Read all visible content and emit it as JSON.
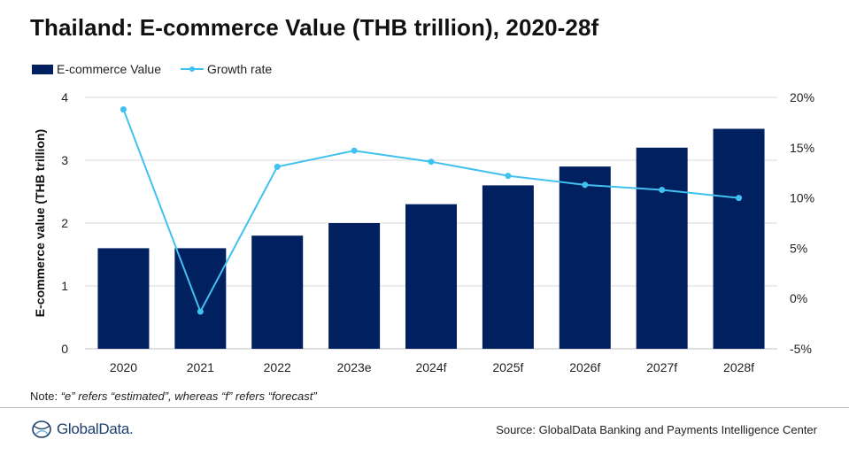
{
  "title": "Thailand: E-commerce Value (THB trillion), 2020-28f",
  "legend": {
    "bar_label": "E-commerce Value",
    "line_label": "Growth rate"
  },
  "note": {
    "prefix": "Note: ",
    "text": "“e” refers “estimated”, whereas “f” refers “forecast”"
  },
  "footer": {
    "logo_text": "GlobalData.",
    "source": "Source: GlobalData Banking and Payments Intelligence Center"
  },
  "colors": {
    "bar": "#002060",
    "line": "#41c1f0",
    "grid": "#d9d9d9"
  },
  "chart_data": {
    "type": "bar",
    "categories": [
      "2020",
      "2021",
      "2022",
      "2023e",
      "2024f",
      "2025f",
      "2026f",
      "2027f",
      "2028f"
    ],
    "series": [
      {
        "name": "E-commerce Value",
        "type": "bar",
        "axis": "left",
        "values": [
          1.6,
          1.6,
          1.8,
          2.0,
          2.3,
          2.6,
          2.9,
          3.2,
          3.5
        ]
      },
      {
        "name": "Growth rate",
        "type": "line",
        "axis": "right",
        "values": [
          18.8,
          -1.3,
          13.1,
          14.7,
          13.6,
          12.2,
          11.3,
          10.8,
          10.0
        ]
      }
    ],
    "ylabel": "E-commerce value (THB trillion)",
    "ylim": [
      0,
      4
    ],
    "yticks": [
      "0",
      "1",
      "2",
      "3",
      "4"
    ],
    "y2lim": [
      -5,
      20
    ],
    "y2ticks": [
      "-5%",
      "0%",
      "5%",
      "10%",
      "15%",
      "20%"
    ],
    "grid": true,
    "legend_position": "top-left"
  }
}
